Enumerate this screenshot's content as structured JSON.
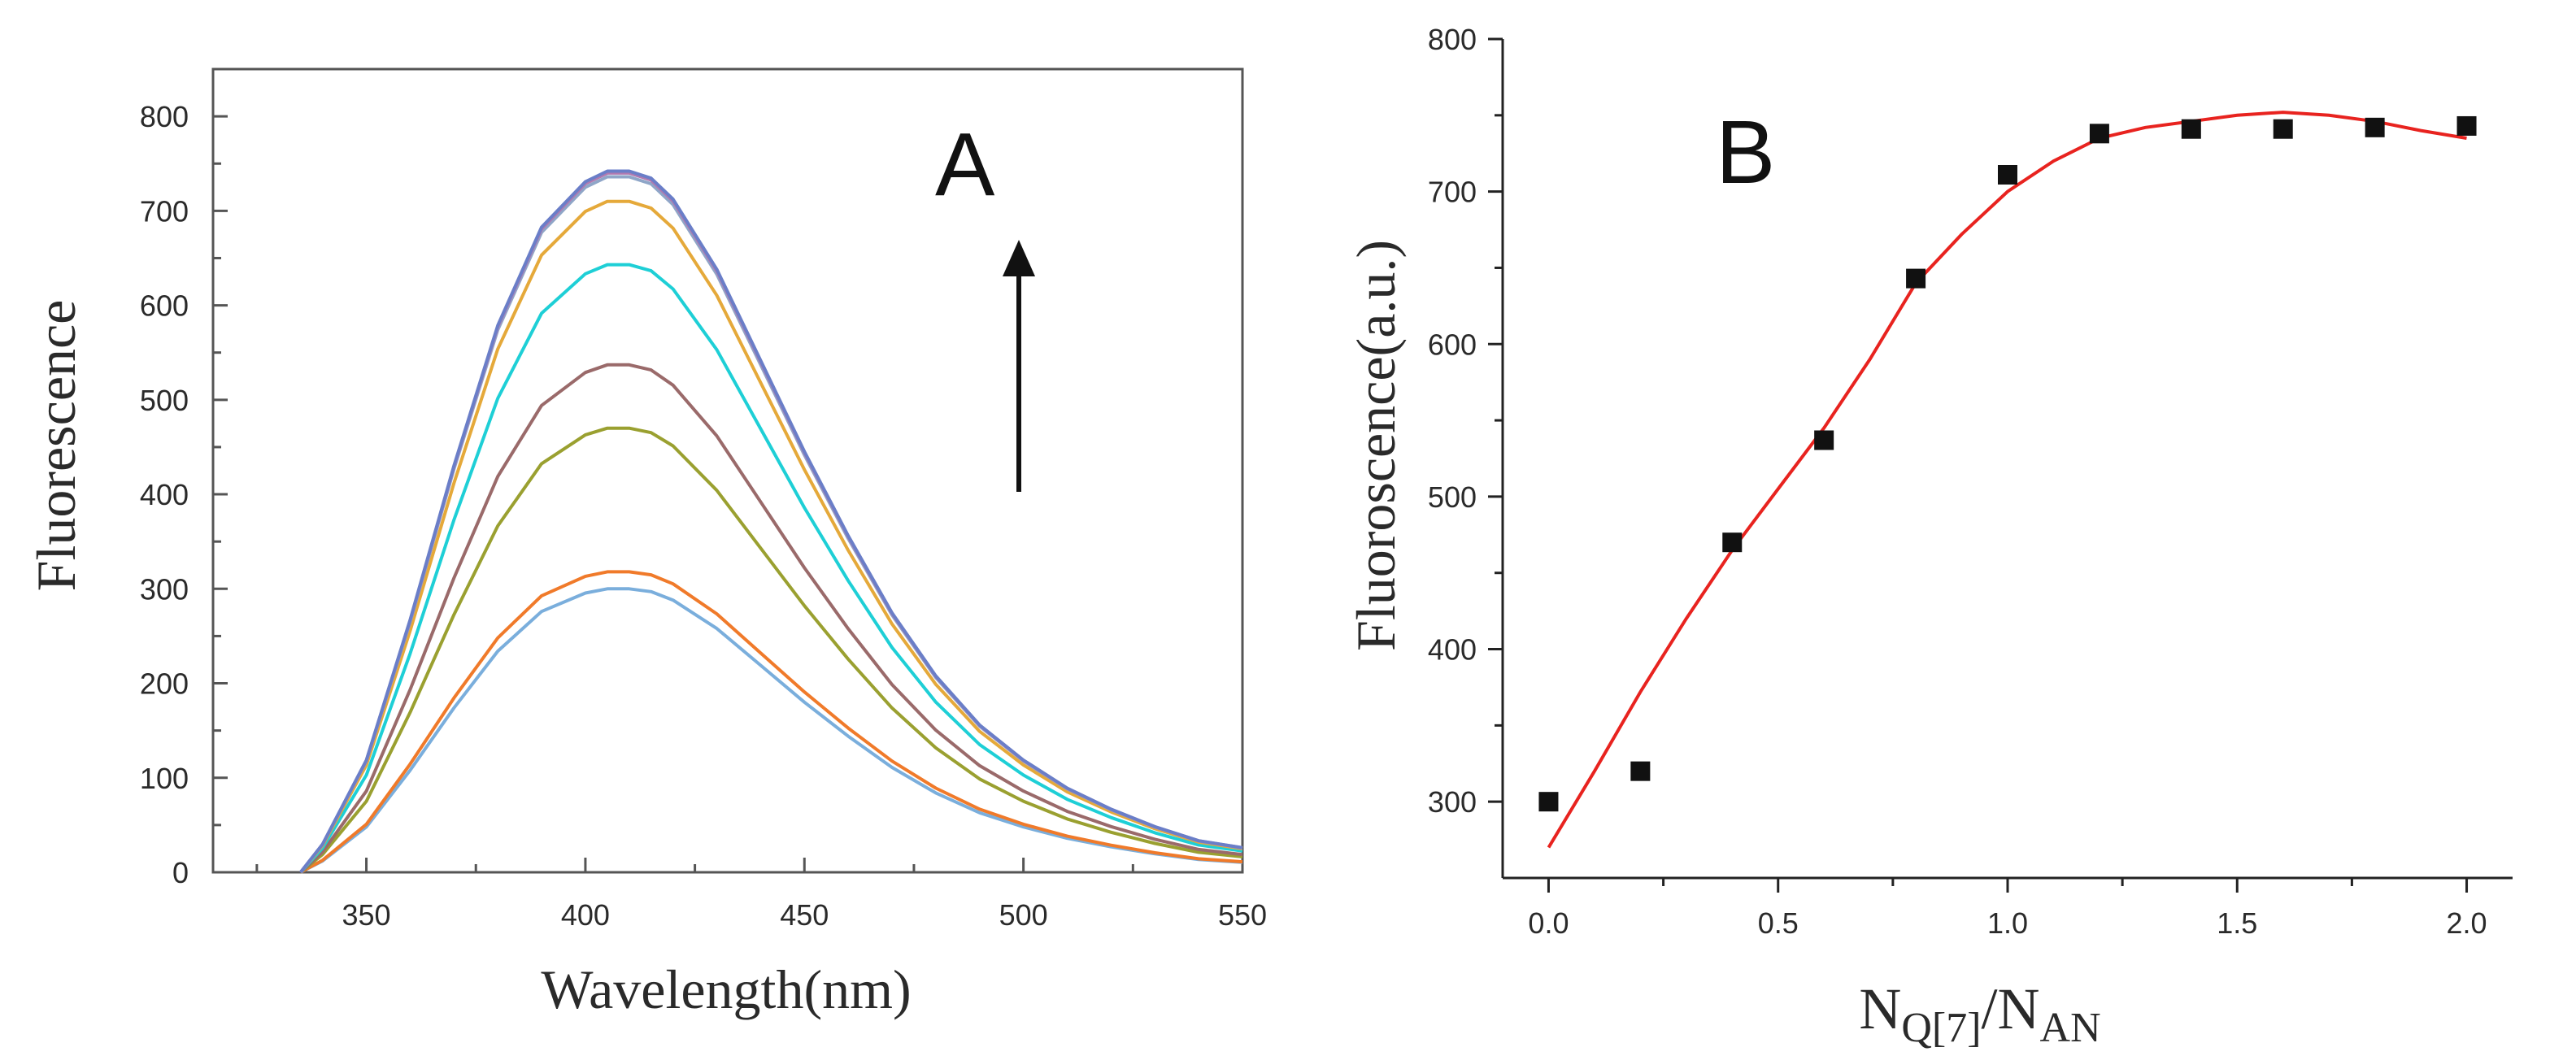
{
  "chart_data": [
    {
      "panel": "A",
      "type": "line",
      "panel_label": "A",
      "xlabel": "Wavelength(nm)",
      "ylabel": "Fluorescence",
      "xlim": [
        315,
        550
      ],
      "ylim": [
        0,
        850
      ],
      "xticks": [
        "350",
        "400",
        "450",
        "500",
        "550"
      ],
      "yticks": [
        "0",
        "100",
        "200",
        "300",
        "400",
        "500",
        "600",
        "700",
        "800"
      ],
      "grid": false,
      "legend": "none",
      "x": [
        335,
        340,
        350,
        360,
        370,
        380,
        390,
        400,
        405,
        410,
        415,
        420,
        430,
        440,
        450,
        460,
        470,
        480,
        490,
        500,
        510,
        520,
        530,
        540,
        550
      ],
      "series": [
        {
          "color": "#7aaedc",
          "peak": 300
        },
        {
          "color": "#f07a2a",
          "peak": 318
        },
        {
          "color": "#9aa030",
          "peak": 470
        },
        {
          "color": "#9a6a6a",
          "peak": 537
        },
        {
          "color": "#1ecfd6",
          "peak": 643
        },
        {
          "color": "#e5a93a",
          "peak": 710
        },
        {
          "color": "#8fa6c8",
          "peak": 736
        },
        {
          "color": "#b07ab0",
          "peak": 740
        },
        {
          "color": "#6a7ec8",
          "peak": 742
        }
      ],
      "shape": [
        0,
        0.04,
        0.16,
        0.36,
        0.58,
        0.78,
        0.92,
        0.985,
        1.0,
        1.0,
        0.99,
        0.96,
        0.86,
        0.73,
        0.6,
        0.48,
        0.37,
        0.28,
        0.21,
        0.16,
        0.12,
        0.09,
        0.065,
        0.045,
        0.035
      ],
      "annotation": "arrow pointing up"
    },
    {
      "panel": "B",
      "type": "scatter",
      "panel_label": "B",
      "xlabel": "N",
      "xlabel_sub1": "Q[7]",
      "xlabel_mid": "/N",
      "xlabel_sub2": "AN",
      "ylabel": "Fluoroscence(a.u.)",
      "xlim": [
        -0.1,
        2.1
      ],
      "ylim": [
        250,
        800
      ],
      "xticks": [
        "0.0",
        "0.5",
        "1.0",
        "1.5",
        "2.0"
      ],
      "yticks": [
        "300",
        "400",
        "500",
        "600",
        "700",
        "800"
      ],
      "grid": false,
      "legend": "none",
      "points": [
        {
          "x": 0.0,
          "y": 300
        },
        {
          "x": 0.2,
          "y": 320
        },
        {
          "x": 0.4,
          "y": 470
        },
        {
          "x": 0.6,
          "y": 537
        },
        {
          "x": 0.8,
          "y": 643
        },
        {
          "x": 1.0,
          "y": 711
        },
        {
          "x": 1.2,
          "y": 738
        },
        {
          "x": 1.4,
          "y": 741
        },
        {
          "x": 1.6,
          "y": 741
        },
        {
          "x": 1.8,
          "y": 742
        },
        {
          "x": 2.0,
          "y": 743
        }
      ],
      "fit": {
        "color": "#e8231f",
        "x": [
          0.0,
          0.1,
          0.2,
          0.3,
          0.4,
          0.5,
          0.6,
          0.7,
          0.8,
          0.9,
          1.0,
          1.1,
          1.2,
          1.3,
          1.4,
          1.5,
          1.6,
          1.7,
          1.8,
          1.9,
          2.0
        ],
        "y": [
          270,
          320,
          372,
          420,
          465,
          505,
          545,
          590,
          640,
          672,
          700,
          720,
          735,
          742,
          746,
          750,
          752,
          750,
          746,
          740,
          735
        ]
      }
    }
  ]
}
